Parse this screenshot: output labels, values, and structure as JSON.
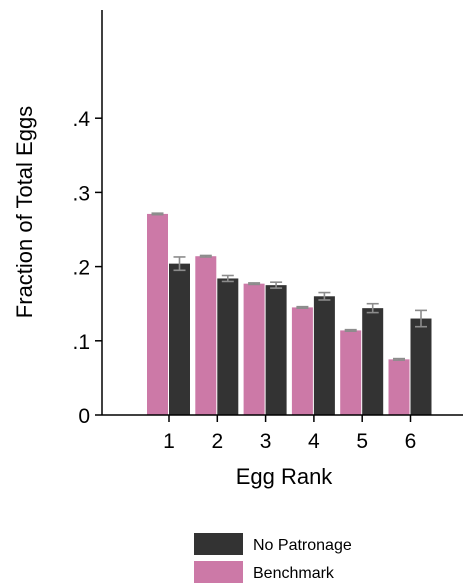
{
  "chart_data": {
    "type": "bar",
    "xlabel": "Egg Rank",
    "ylabel": "Fraction of Total Eggs",
    "categories": [
      "1",
      "2",
      "3",
      "4",
      "5",
      "6"
    ],
    "ylim": [
      0,
      0.54
    ],
    "yticks": [
      {
        "value": 0,
        "label": "0"
      },
      {
        "value": 0.1,
        "label": ".1"
      },
      {
        "value": 0.2,
        "label": ".2"
      },
      {
        "value": 0.3,
        "label": ".3"
      },
      {
        "value": 0.4,
        "label": ".4"
      }
    ],
    "grid": false,
    "legend": "bottom-center",
    "series": [
      {
        "name": "Benchmark",
        "color": "#cc79a7",
        "values": [
          0.271,
          0.214,
          0.177,
          0.145,
          0.114,
          0.075
        ],
        "error": [
          0.001,
          0.001,
          0.001,
          0.001,
          0.001,
          0.001
        ]
      },
      {
        "name": "No Patronage",
        "color": "#333333",
        "values": [
          0.204,
          0.184,
          0.175,
          0.16,
          0.144,
          0.13
        ],
        "error": [
          0.009,
          0.004,
          0.004,
          0.005,
          0.006,
          0.011
        ]
      }
    ],
    "legend_order": [
      "No Patronage",
      "Benchmark"
    ]
  }
}
